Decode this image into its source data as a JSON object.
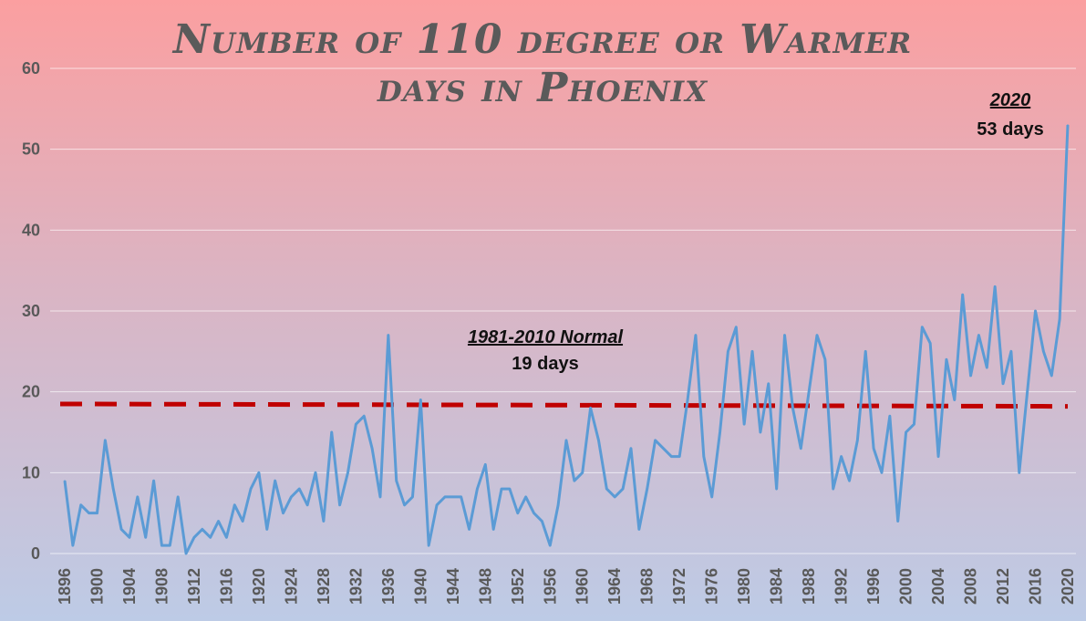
{
  "chart_data": {
    "type": "line",
    "title_lines": [
      "Number of 110 degree or Warmer",
      "days in Phoenix"
    ],
    "xlabel": "",
    "ylabel": "",
    "ylim": [
      0,
      60
    ],
    "y_ticks": [
      0,
      10,
      20,
      30,
      40,
      50,
      60
    ],
    "x_tick_labels": [
      "1896",
      "1900",
      "1904",
      "1908",
      "1912",
      "1916",
      "1920",
      "1924",
      "1928",
      "1932",
      "1936",
      "1940",
      "1944",
      "1948",
      "1952",
      "1956",
      "1960",
      "1964",
      "1968",
      "1972",
      "1976",
      "1980",
      "1984",
      "1988",
      "1992",
      "1996",
      "2000",
      "2004",
      "2008",
      "2012",
      "2016",
      "2020"
    ],
    "grid": true,
    "series": [
      {
        "color": "#5b9bd5",
        "x": [
          1896,
          1897,
          1898,
          1899,
          1900,
          1901,
          1902,
          1903,
          1904,
          1905,
          1906,
          1907,
          1908,
          1909,
          1910,
          1911,
          1912,
          1913,
          1914,
          1915,
          1916,
          1917,
          1918,
          1919,
          1920,
          1921,
          1922,
          1923,
          1924,
          1925,
          1926,
          1927,
          1928,
          1929,
          1930,
          1931,
          1932,
          1933,
          1934,
          1935,
          1936,
          1937,
          1938,
          1939,
          1940,
          1941,
          1942,
          1943,
          1944,
          1945,
          1946,
          1947,
          1948,
          1949,
          1950,
          1951,
          1952,
          1953,
          1954,
          1955,
          1956,
          1957,
          1958,
          1959,
          1960,
          1961,
          1962,
          1963,
          1964,
          1965,
          1966,
          1967,
          1968,
          1969,
          1970,
          1971,
          1972,
          1973,
          1974,
          1975,
          1976,
          1977,
          1978,
          1979,
          1980,
          1981,
          1982,
          1983,
          1984,
          1985,
          1986,
          1987,
          1988,
          1989,
          1990,
          1991,
          1992,
          1993,
          1994,
          1995,
          1996,
          1997,
          1998,
          1999,
          2000,
          2001,
          2002,
          2003,
          2004,
          2005,
          2006,
          2007,
          2008,
          2009,
          2010,
          2011,
          2012,
          2013,
          2014,
          2015,
          2016,
          2017,
          2018,
          2019,
          2020
        ],
        "values": [
          9,
          1,
          6,
          5,
          5,
          14,
          8,
          3,
          2,
          7,
          2,
          9,
          1,
          1,
          7,
          0,
          2,
          3,
          2,
          4,
          2,
          6,
          4,
          8,
          10,
          3,
          9,
          5,
          7,
          8,
          6,
          10,
          4,
          15,
          6,
          10,
          16,
          17,
          13,
          7,
          27,
          9,
          6,
          7,
          19,
          1,
          6,
          7,
          7,
          7,
          3,
          8,
          11,
          3,
          8,
          8,
          5,
          7,
          5,
          4,
          1,
          6,
          14,
          9,
          10,
          18,
          14,
          8,
          7,
          8,
          13,
          3,
          8,
          14,
          13,
          12,
          12,
          19,
          27,
          12,
          7,
          15,
          25,
          28,
          16,
          25,
          15,
          21,
          8,
          27,
          18,
          13,
          20,
          27,
          24,
          8,
          12,
          9,
          14,
          25,
          13,
          10,
          17,
          4,
          15,
          16,
          28,
          26,
          12,
          24,
          19,
          32,
          22,
          27,
          23,
          33,
          21,
          25,
          10,
          20,
          30,
          25,
          22,
          29,
          53
        ]
      },
      {
        "color": "#c00000",
        "style": "dashed",
        "x": [
          1896,
          2020
        ],
        "values": [
          18.5,
          18.2
        ]
      }
    ],
    "annotations": [
      {
        "heading": "1981-2010 Normal",
        "value": "19 days"
      },
      {
        "heading": "2020",
        "value": "53 days"
      }
    ]
  }
}
